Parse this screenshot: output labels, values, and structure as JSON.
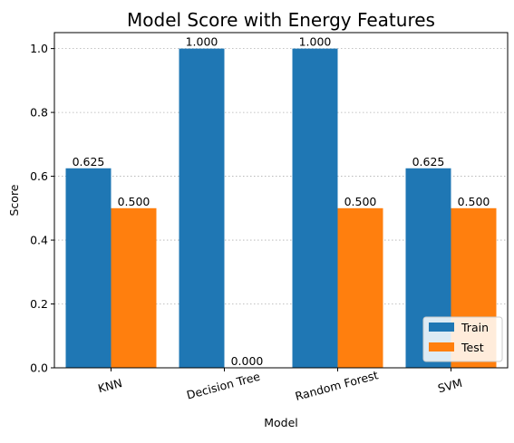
{
  "chart_data": {
    "type": "bar",
    "title": "Model Score with Energy Features",
    "xlabel": "Model",
    "ylabel": "Score",
    "categories": [
      "KNN",
      "Decision Tree",
      "Random Forest",
      "SVM"
    ],
    "series": [
      {
        "name": "Train",
        "values": [
          0.625,
          1.0,
          1.0,
          0.625
        ],
        "color": "#1f77b4"
      },
      {
        "name": "Test",
        "values": [
          0.5,
          0.0,
          0.5,
          0.5
        ],
        "color": "#ff7f0e"
      }
    ],
    "data_labels": [
      [
        "0.625",
        "1.000",
        "1.000",
        "0.625"
      ],
      [
        "0.500",
        "0.000",
        "0.500",
        "0.500"
      ]
    ],
    "ylim": [
      0,
      1.05
    ],
    "yticks": [
      0.0,
      0.2,
      0.4,
      0.6,
      0.8,
      1.0
    ],
    "ytick_labels": [
      "0.0",
      "0.2",
      "0.4",
      "0.6",
      "0.8",
      "1.0"
    ],
    "grid": "y-axis dotted",
    "legend_position": "lower right",
    "xtick_rotation_deg": 15
  }
}
